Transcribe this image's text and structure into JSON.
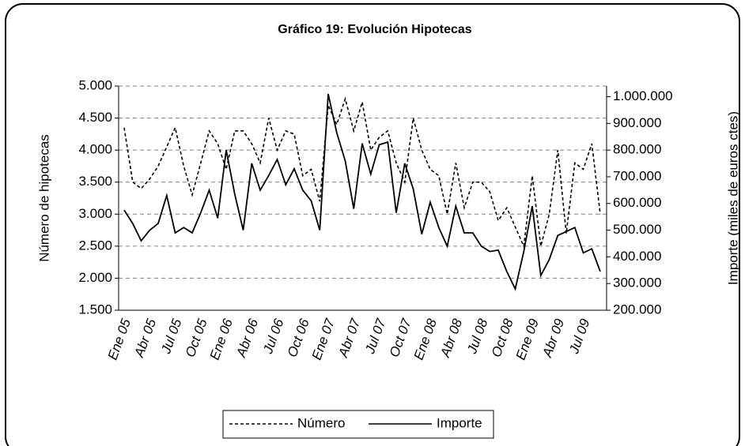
{
  "chart_data": {
    "type": "line",
    "title": "Gráfico 19: Evolución Hipotecas",
    "ylabel": "Número de hipotecas",
    "y2label": "Importe (miles de euros ctes)",
    "categories": [
      "Ene 05",
      null,
      null,
      "Abr 05",
      null,
      null,
      "Jul 05",
      null,
      null,
      "Oct 05",
      null,
      null,
      "Ene 06",
      null,
      null,
      "Abr 06",
      null,
      null,
      "Jul 06",
      null,
      null,
      "Oct 06",
      null,
      null,
      "Ene 07",
      null,
      null,
      "Abr 07",
      null,
      null,
      "Jul 07",
      null,
      null,
      "Oct 07",
      null,
      null,
      "Ene 08",
      null,
      null,
      "Abr 08",
      null,
      null,
      "Jul 08",
      null,
      null,
      "Oct 08",
      null,
      null,
      "Ene 09",
      null,
      null,
      "Abr 09",
      null,
      null,
      "Jul 09",
      null,
      null
    ],
    "series": [
      {
        "name": "Número",
        "color": "#000000",
        "dash": true,
        "axis": "y",
        "values": [
          4350,
          3500,
          3400,
          3550,
          3750,
          4050,
          4350,
          3750,
          3300,
          3800,
          4300,
          4100,
          3700,
          4300,
          4300,
          4100,
          3800,
          4500,
          4000,
          4300,
          4250,
          3600,
          3700,
          3200,
          4700,
          4400,
          4800,
          4300,
          4750,
          4000,
          4200,
          4300,
          3800,
          3500,
          4500,
          4000,
          3700,
          3600,
          3000,
          3800,
          3100,
          3500,
          3500,
          3350,
          2900,
          3100,
          2800,
          2500,
          3600,
          2500,
          3000,
          4000,
          2700,
          3800,
          3700,
          4100,
          3000
        ]
      },
      {
        "name": "Importe",
        "color": "#000000",
        "dash": false,
        "axis": "y2",
        "values": [
          575000,
          525000,
          460000,
          500000,
          525000,
          630000,
          490000,
          510000,
          490000,
          565000,
          650000,
          545000,
          800000,
          635000,
          500000,
          750000,
          650000,
          705000,
          765000,
          670000,
          730000,
          650000,
          610000,
          500000,
          1010000,
          865000,
          760000,
          580000,
          825000,
          710000,
          820000,
          830000,
          565000,
          750000,
          655000,
          485000,
          605000,
          510000,
          440000,
          590000,
          490000,
          490000,
          440000,
          420000,
          425000,
          345000,
          280000,
          420000,
          590000,
          330000,
          390000,
          480000,
          495000,
          510000,
          415000,
          430000,
          345000
        ]
      }
    ],
    "ylim": [
      1500,
      5000
    ],
    "yticks": [
      {
        "value": 1500,
        "label": "1.500"
      },
      {
        "value": 2000,
        "label": "2.000"
      },
      {
        "value": 2500,
        "label": "2.500"
      },
      {
        "value": 3000,
        "label": "3.000"
      },
      {
        "value": 3500,
        "label": "3.500"
      },
      {
        "value": 4000,
        "label": "4.000"
      },
      {
        "value": 4500,
        "label": "4.500"
      },
      {
        "value": 5000,
        "label": "5.000"
      }
    ],
    "y2lim": [
      200000,
      1040000
    ],
    "y2ticks": [
      {
        "value": 200000,
        "label": "200.000"
      },
      {
        "value": 300000,
        "label": "300.000"
      },
      {
        "value": 400000,
        "label": "400.000"
      },
      {
        "value": 500000,
        "label": "500.000"
      },
      {
        "value": 600000,
        "label": "600.000"
      },
      {
        "value": 700000,
        "label": "700.000"
      },
      {
        "value": 800000,
        "label": "800.000"
      },
      {
        "value": 900000,
        "label": "900.000"
      },
      {
        "value": 1000000,
        "label": "1.000.000"
      }
    ],
    "grid": true,
    "legend": "bottom"
  }
}
